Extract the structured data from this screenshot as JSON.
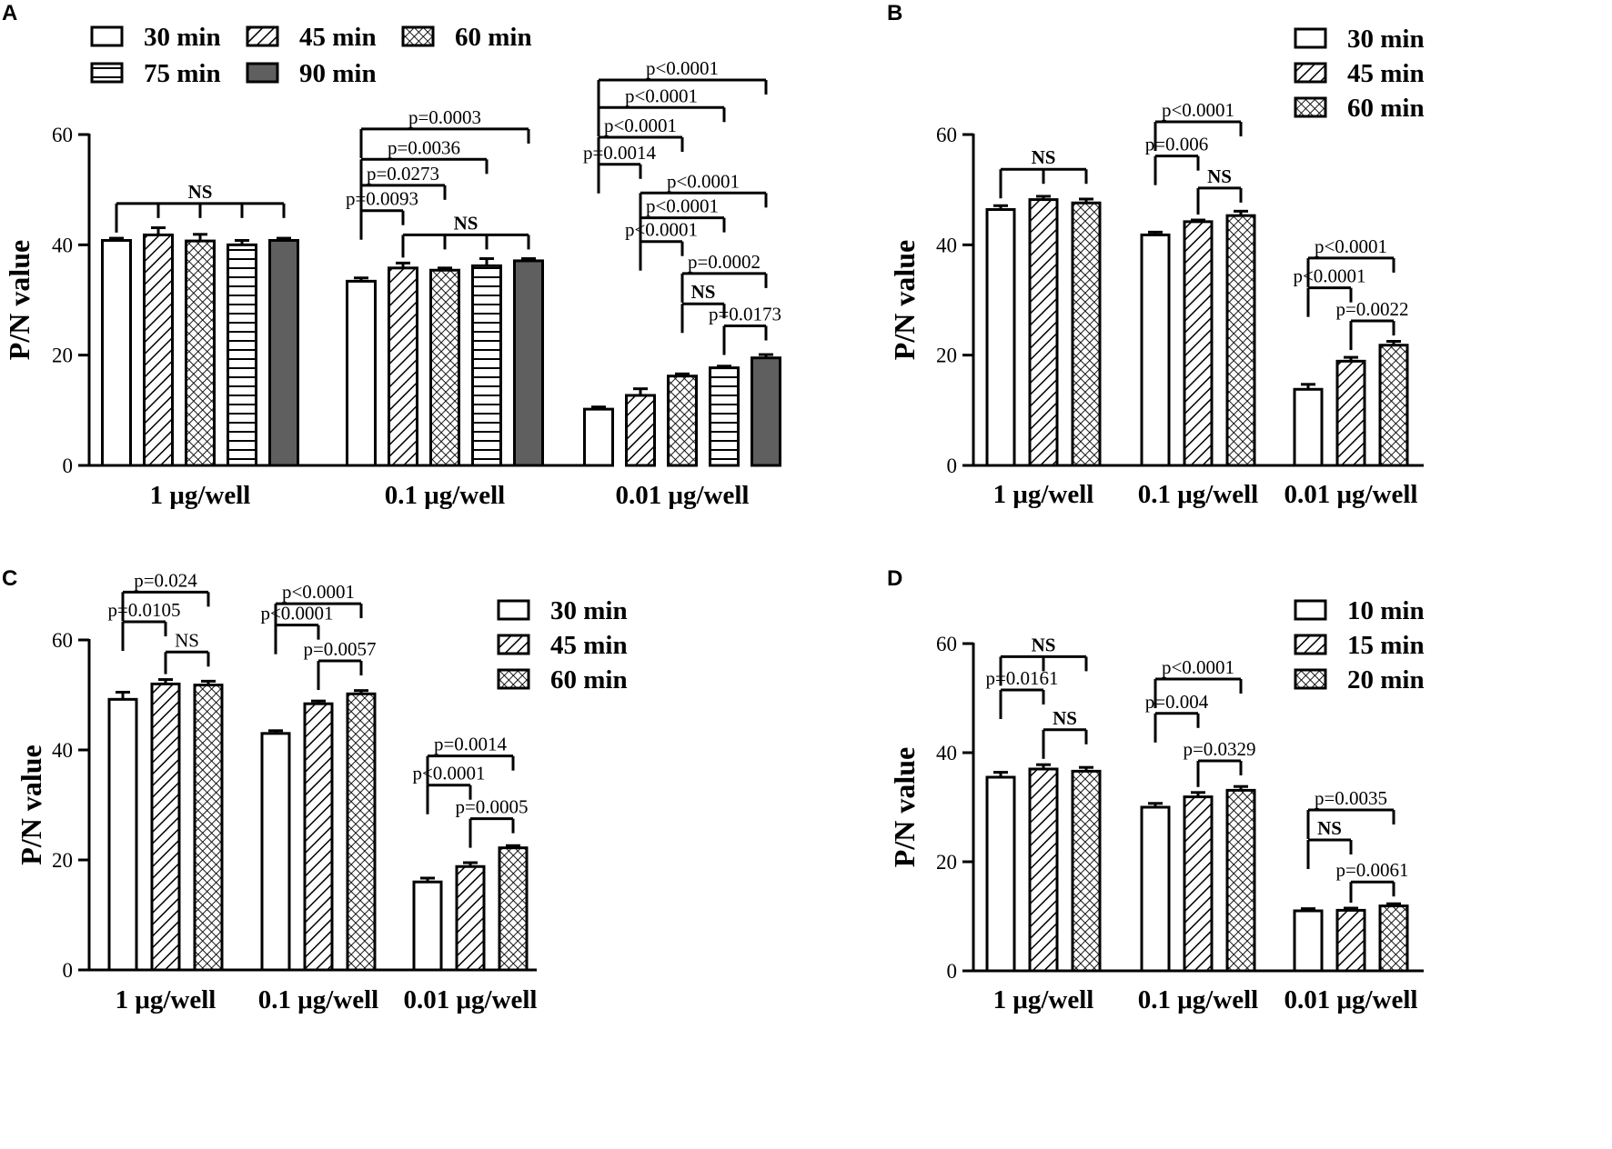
{
  "colors": {
    "ink": "#000000",
    "paper": "#ffffff",
    "dark_fill": "#5f5f5f"
  },
  "chart_data": [
    {
      "panel": "A",
      "type": "bar",
      "ylabel": "P/N value",
      "xlabel": "",
      "ylim": [
        0,
        60
      ],
      "yticks": [
        "0",
        "20",
        "40",
        "60"
      ],
      "categories": [
        "1 μg/well",
        "0.1 μg/well",
        "0.01 μg/well"
      ],
      "series": [
        {
          "name": "30 min",
          "pattern": "open",
          "values": [
            40.8,
            33.4,
            10.2
          ],
          "errors": [
            0.4,
            0.6,
            0.4
          ]
        },
        {
          "name": "45 min",
          "pattern": "hatch",
          "values": [
            41.8,
            35.8,
            12.7
          ],
          "errors": [
            1.3,
            0.9,
            1.2
          ]
        },
        {
          "name": "60 min",
          "pattern": "cross",
          "values": [
            40.7,
            35.4,
            16.2
          ],
          "errors": [
            1.2,
            0.4,
            0.4
          ]
        },
        {
          "name": "75 min",
          "pattern": "hline",
          "values": [
            40.0,
            36.2,
            17.7
          ],
          "errors": [
            0.8,
            1.3,
            0.3
          ]
        },
        {
          "name": "90 min",
          "pattern": "dark",
          "values": [
            40.8,
            37.1,
            19.5
          ],
          "errors": [
            0.4,
            0.4,
            0.6
          ]
        }
      ],
      "legend": {
        "placement": "top-left",
        "columns": 3
      },
      "annotations": [
        {
          "text": "NS",
          "group": 0,
          "from": 0,
          "to": [
            0,
            1,
            2,
            3,
            4
          ],
          "level": 47.5,
          "bold": true
        },
        {
          "text": "p=0.0093",
          "group": 1,
          "from": 0,
          "to": [
            1
          ],
          "level": 46.2
        },
        {
          "text": "p=0.0273",
          "group": 1,
          "from": 0,
          "to": [
            2
          ],
          "level": 50.8
        },
        {
          "text": "p=0.0036",
          "group": 1,
          "from": 0,
          "to": [
            3
          ],
          "level": 55.5
        },
        {
          "text": "p=0.0003",
          "group": 1,
          "from": 0,
          "to": [
            4
          ],
          "level": 61.0
        },
        {
          "text": "NS",
          "group": 1,
          "from": 1,
          "to": [
            1,
            2,
            3,
            4
          ],
          "level": 41.8,
          "bold": true
        },
        {
          "text": "p=0.0014",
          "group": 2,
          "from": 0,
          "to": [
            1
          ],
          "level": 54.6
        },
        {
          "text": "p<0.0001",
          "group": 2,
          "from": 0,
          "to": [
            2
          ],
          "level": 59.5
        },
        {
          "text": "p<0.0001",
          "group": 2,
          "from": 0,
          "to": [
            3
          ],
          "level": 64.9
        },
        {
          "text": "p<0.0001",
          "group": 2,
          "from": 0,
          "to": [
            4
          ],
          "level": 69.9
        },
        {
          "text": "p<0.0001",
          "group": 2,
          "from": 1,
          "to": [
            2
          ],
          "level": 40.6
        },
        {
          "text": "p<0.0001",
          "group": 2,
          "from": 1,
          "to": [
            3
          ],
          "level": 44.9
        },
        {
          "text": "p<0.0001",
          "group": 2,
          "from": 1,
          "to": [
            4
          ],
          "level": 49.4
        },
        {
          "text": "NS",
          "group": 2,
          "from": 2,
          "to": [
            3
          ],
          "level": 29.3,
          "bold": true
        },
        {
          "text": "p=0.0002",
          "group": 2,
          "from": 2,
          "to": [
            4
          ],
          "level": 34.8
        },
        {
          "text": "p=0.0173",
          "group": 2,
          "from": 3,
          "to": [
            4
          ],
          "level": 25.3
        }
      ]
    },
    {
      "panel": "B",
      "type": "bar",
      "ylabel": "P/N value",
      "xlabel": "",
      "ylim": [
        0,
        60
      ],
      "yticks": [
        "0",
        "20",
        "40",
        "60"
      ],
      "categories": [
        "1 μg/well",
        "0.1 μg/well",
        "0.01 μg/well"
      ],
      "series": [
        {
          "name": "30 min",
          "pattern": "open",
          "values": [
            46.4,
            41.8,
            13.8
          ],
          "errors": [
            0.7,
            0.5,
            0.9
          ]
        },
        {
          "name": "45 min",
          "pattern": "hatch",
          "values": [
            48.2,
            44.2,
            18.9
          ],
          "errors": [
            0.6,
            0.3,
            0.7
          ]
        },
        {
          "name": "60 min",
          "pattern": "cross",
          "values": [
            47.6,
            45.3,
            21.8
          ],
          "errors": [
            0.7,
            0.8,
            0.7
          ]
        }
      ],
      "legend": {
        "placement": "top-right",
        "columns": 1
      },
      "annotations": [
        {
          "text": "NS",
          "group": 0,
          "from": 0,
          "to": [
            0,
            1,
            2
          ],
          "level": 53.7,
          "bold": true
        },
        {
          "text": "p=0.006",
          "group": 1,
          "from": 0,
          "to": [
            1
          ],
          "level": 56.1
        },
        {
          "text": "p<0.0001",
          "group": 1,
          "from": 0,
          "to": [
            2
          ],
          "level": 62.3
        },
        {
          "text": "NS",
          "group": 1,
          "from": 1,
          "to": [
            2
          ],
          "level": 50.3,
          "bold": true
        },
        {
          "text": "p<0.0001",
          "group": 2,
          "from": 0,
          "to": [
            1
          ],
          "level": 32.2
        },
        {
          "text": "p<0.0001",
          "group": 2,
          "from": 0,
          "to": [
            2
          ],
          "level": 37.6
        },
        {
          "text": "p=0.0022",
          "group": 2,
          "from": 1,
          "to": [
            2
          ],
          "level": 26.2
        }
      ]
    },
    {
      "panel": "C",
      "type": "bar",
      "ylabel": "P/N value",
      "xlabel": "",
      "ylim": [
        0,
        60
      ],
      "yticks": [
        "0",
        "20",
        "40",
        "60"
      ],
      "categories": [
        "1 μg/well",
        "0.1 μg/well",
        "0.01 μg/well"
      ],
      "series": [
        {
          "name": "30 min",
          "pattern": "open",
          "values": [
            49.2,
            43.0,
            16.0
          ],
          "errors": [
            1.3,
            0.5,
            0.7
          ]
        },
        {
          "name": "45 min",
          "pattern": "hatch",
          "values": [
            52.0,
            48.4,
            18.8
          ],
          "errors": [
            0.8,
            0.5,
            0.7
          ]
        },
        {
          "name": "60 min",
          "pattern": "cross",
          "values": [
            51.8,
            50.2,
            22.2
          ],
          "errors": [
            0.7,
            0.6,
            0.4
          ]
        }
      ],
      "legend": {
        "placement": "top-right",
        "columns": 1
      },
      "annotations": [
        {
          "text": "p=0.0105",
          "group": 0,
          "from": 0,
          "to": [
            1
          ],
          "level": 63.3
        },
        {
          "text": "p=0.024",
          "group": 0,
          "from": 0,
          "to": [
            2
          ],
          "level": 68.7
        },
        {
          "text": "NS",
          "group": 0,
          "from": 1,
          "to": [
            2
          ],
          "level": 57.8
        },
        {
          "text": "p<0.0001",
          "group": 1,
          "from": 0,
          "to": [
            1
          ],
          "level": 62.7
        },
        {
          "text": "p<0.0001",
          "group": 1,
          "from": 0,
          "to": [
            2
          ],
          "level": 66.6
        },
        {
          "text": "p=0.0057",
          "group": 1,
          "from": 1,
          "to": [
            2
          ],
          "level": 56.2
        },
        {
          "text": "p<0.0001",
          "group": 2,
          "from": 0,
          "to": [
            1
          ],
          "level": 33.6
        },
        {
          "text": "p=0.0014",
          "group": 2,
          "from": 0,
          "to": [
            2
          ],
          "level": 38.9
        },
        {
          "text": "p=0.0005",
          "group": 2,
          "from": 1,
          "to": [
            2
          ],
          "level": 27.5
        }
      ]
    },
    {
      "panel": "D",
      "type": "bar",
      "ylabel": "P/N value",
      "xlabel": "",
      "ylim": [
        0,
        60
      ],
      "yticks": [
        "0",
        "20",
        "40",
        "60"
      ],
      "categories": [
        "1 μg/well",
        "0.1 μg/well",
        "0.01 μg/well"
      ],
      "series": [
        {
          "name": "10 min",
          "pattern": "open",
          "values": [
            35.5,
            30.0,
            11.0
          ],
          "errors": [
            0.9,
            0.7,
            0.4
          ]
        },
        {
          "name": "15 min",
          "pattern": "hatch",
          "values": [
            37.0,
            31.9,
            11.1
          ],
          "errors": [
            0.8,
            0.8,
            0.4
          ]
        },
        {
          "name": "20 min",
          "pattern": "cross",
          "values": [
            36.6,
            33.1,
            11.9
          ],
          "errors": [
            0.7,
            0.7,
            0.4
          ]
        }
      ],
      "legend": {
        "placement": "top-right",
        "columns": 1
      },
      "annotations": [
        {
          "text": "NS",
          "group": 0,
          "from": 0,
          "to": [
            0,
            1,
            2
          ],
          "level": 57.6,
          "bold": true
        },
        {
          "text": "p=0.0161",
          "group": 0,
          "from": 0,
          "to": [
            1
          ],
          "level": 51.5
        },
        {
          "text": "NS",
          "group": 0,
          "from": 1,
          "to": [
            2
          ],
          "level": 44.2,
          "bold": true
        },
        {
          "text": "p=0.004",
          "group": 1,
          "from": 0,
          "to": [
            1
          ],
          "level": 47.2
        },
        {
          "text": "p<0.0001",
          "group": 1,
          "from": 0,
          "to": [
            2
          ],
          "level": 53.5
        },
        {
          "text": "p=0.0329",
          "group": 1,
          "from": 1,
          "to": [
            2
          ],
          "level": 38.5
        },
        {
          "text": "NS",
          "group": 2,
          "from": 0,
          "to": [
            1
          ],
          "level": 24.0,
          "bold": true
        },
        {
          "text": "p=0.0035",
          "group": 2,
          "from": 0,
          "to": [
            2
          ],
          "level": 29.5
        },
        {
          "text": "p=0.0061",
          "group": 2,
          "from": 1,
          "to": [
            2
          ],
          "level": 16.3
        }
      ]
    }
  ]
}
